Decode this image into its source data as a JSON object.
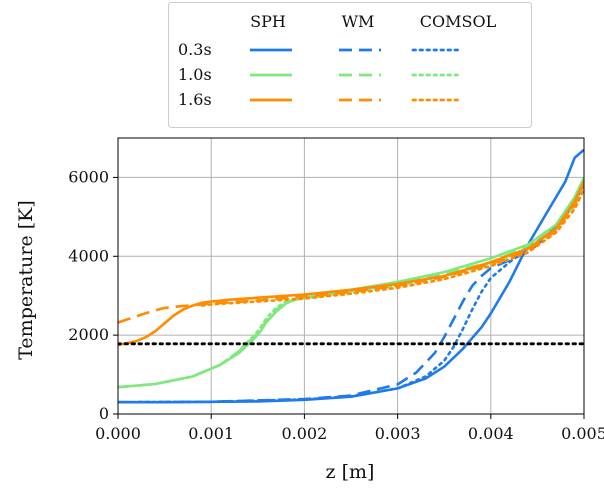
{
  "chart_data": {
    "type": "line",
    "title": "",
    "xlabel": "z [m]",
    "ylabel": "Temperature [K]",
    "xlim": [
      0.0,
      0.005
    ],
    "ylim": [
      0,
      7000
    ],
    "x_ticks": [
      0.0,
      0.001,
      0.002,
      0.003,
      0.004,
      0.005
    ],
    "x_tick_labels": [
      "0.000",
      "0.001",
      "0.002",
      "0.003",
      "0.004",
      "0.005"
    ],
    "y_ticks": [
      0,
      2000,
      4000,
      6000
    ],
    "y_tick_labels": [
      "0",
      "2000",
      "4000",
      "6000"
    ],
    "grid": true,
    "legend": {
      "placement": "top",
      "column_headers": [
        "SPH",
        "WM",
        "COMSOL"
      ],
      "row_labels": [
        "0.3s",
        "1.0s",
        "1.6s"
      ],
      "styles": [
        "solid",
        "dashed",
        "dotted"
      ]
    },
    "colors": {
      "0.3s": "#1f7be8",
      "1.0s": "#7fe87f",
      "1.6s": "#ff8c00",
      "reference": "#000000"
    },
    "series": [
      {
        "time": "0.3s",
        "method": "SPH",
        "style": "solid",
        "x": [
          0,
          0.0005,
          0.001,
          0.0015,
          0.002,
          0.0025,
          0.003,
          0.0033,
          0.0035,
          0.0037,
          0.0039,
          0.004,
          0.0042,
          0.0044,
          0.0046,
          0.0048,
          0.0049,
          0.005
        ],
        "y": [
          300,
          300,
          310,
          320,
          360,
          440,
          650,
          900,
          1200,
          1650,
          2200,
          2550,
          3350,
          4300,
          5100,
          5900,
          6500,
          6700
        ]
      },
      {
        "time": "0.3s",
        "method": "WM",
        "style": "dashed",
        "x": [
          0,
          0.001,
          0.002,
          0.0025,
          0.003,
          0.0032,
          0.0034,
          0.0035,
          0.0036,
          0.0037,
          0.0038,
          0.0039,
          0.004,
          0.0042,
          0.0044,
          0.0046,
          0.0048,
          0.005
        ],
        "y": [
          300,
          310,
          380,
          470,
          750,
          1050,
          1550,
          1950,
          2400,
          2850,
          3250,
          3500,
          3700,
          3900,
          4100,
          4500,
          5000,
          5900
        ]
      },
      {
        "time": "0.3s",
        "method": "COMSOL",
        "style": "dotted",
        "x": [
          0,
          0.001,
          0.002,
          0.0025,
          0.003,
          0.0033,
          0.0035,
          0.0036,
          0.0037,
          0.0038,
          0.0039,
          0.004,
          0.0042,
          0.0044,
          0.0046,
          0.0048,
          0.005
        ],
        "y": [
          300,
          310,
          370,
          450,
          650,
          950,
          1350,
          1700,
          2150,
          2650,
          3100,
          3450,
          3850,
          4200,
          4550,
          5000,
          5800
        ]
      },
      {
        "time": "1.0s",
        "method": "SPH",
        "style": "solid",
        "x": [
          0,
          0.0004,
          0.0008,
          0.0011,
          0.0013,
          0.0015,
          0.0016,
          0.0017,
          0.0018,
          0.0019,
          0.002,
          0.0025,
          0.003,
          0.0035,
          0.004,
          0.0044,
          0.0047,
          0.0049,
          0.005
        ],
        "y": [
          680,
          760,
          950,
          1250,
          1550,
          2000,
          2350,
          2600,
          2800,
          2900,
          2950,
          3150,
          3350,
          3600,
          3950,
          4300,
          4800,
          5500,
          6000
        ]
      },
      {
        "time": "1.0s",
        "method": "WM",
        "style": "dashed",
        "x": [
          0,
          0.0004,
          0.0008,
          0.0011,
          0.0013,
          0.0015,
          0.0016,
          0.0017,
          0.0018,
          0.0019,
          0.002,
          0.0025,
          0.003,
          0.0035,
          0.004,
          0.0044,
          0.0047,
          0.0049,
          0.005
        ],
        "y": [
          680,
          760,
          950,
          1250,
          1600,
          2050,
          2400,
          2650,
          2820,
          2900,
          2950,
          3120,
          3300,
          3550,
          3850,
          4250,
          4750,
          5400,
          5950
        ]
      },
      {
        "time": "1.0s",
        "method": "COMSOL",
        "style": "dotted",
        "x": [
          0,
          0.0004,
          0.0008,
          0.0011,
          0.0013,
          0.0015,
          0.0016,
          0.0017,
          0.0018,
          0.0019,
          0.002,
          0.0025,
          0.003,
          0.0035,
          0.004,
          0.0044,
          0.0047,
          0.0049,
          0.005
        ],
        "y": [
          680,
          760,
          950,
          1250,
          1600,
          2100,
          2450,
          2700,
          2850,
          2900,
          2930,
          3080,
          3250,
          3500,
          3800,
          4200,
          4700,
          5300,
          5900
        ]
      },
      {
        "time": "1.6s",
        "method": "SPH",
        "style": "solid",
        "x": [
          0,
          0.0002,
          0.0003,
          0.0004,
          0.0005,
          0.0006,
          0.0007,
          0.0008,
          0.0009,
          0.001,
          0.0012,
          0.0015,
          0.002,
          0.0025,
          0.003,
          0.0035,
          0.004,
          0.0044,
          0.0047,
          0.0049,
          0.005
        ],
        "y": [
          1750,
          1850,
          1950,
          2100,
          2300,
          2500,
          2650,
          2750,
          2820,
          2850,
          2900,
          2950,
          3030,
          3150,
          3300,
          3500,
          3850,
          4200,
          4700,
          5400,
          5900
        ]
      },
      {
        "time": "1.6s",
        "method": "WM",
        "style": "dashed",
        "x": [
          0,
          0.0001,
          0.0002,
          0.0003,
          0.0004,
          0.0005,
          0.0006,
          0.0008,
          0.001,
          0.0012,
          0.0015,
          0.002,
          0.0025,
          0.003,
          0.0035,
          0.004,
          0.0044,
          0.0047,
          0.0049,
          0.005
        ],
        "y": [
          2320,
          2400,
          2480,
          2560,
          2630,
          2690,
          2720,
          2760,
          2800,
          2830,
          2880,
          2980,
          3100,
          3250,
          3480,
          3800,
          4150,
          4650,
          5300,
          5850
        ]
      },
      {
        "time": "1.6s",
        "method": "COMSOL",
        "style": "dotted",
        "x": [
          0.0009,
          0.001,
          0.0012,
          0.0015,
          0.002,
          0.0025,
          0.003,
          0.0035,
          0.004,
          0.0044,
          0.0047,
          0.0049,
          0.005
        ],
        "y": [
          2750,
          2780,
          2810,
          2850,
          2930,
          3050,
          3200,
          3420,
          3750,
          4100,
          4600,
          5200,
          5700
        ]
      },
      {
        "time": "reference",
        "method": "",
        "style": "dotted",
        "x": [
          0,
          0.005
        ],
        "y": [
          1780,
          1780
        ]
      }
    ]
  }
}
